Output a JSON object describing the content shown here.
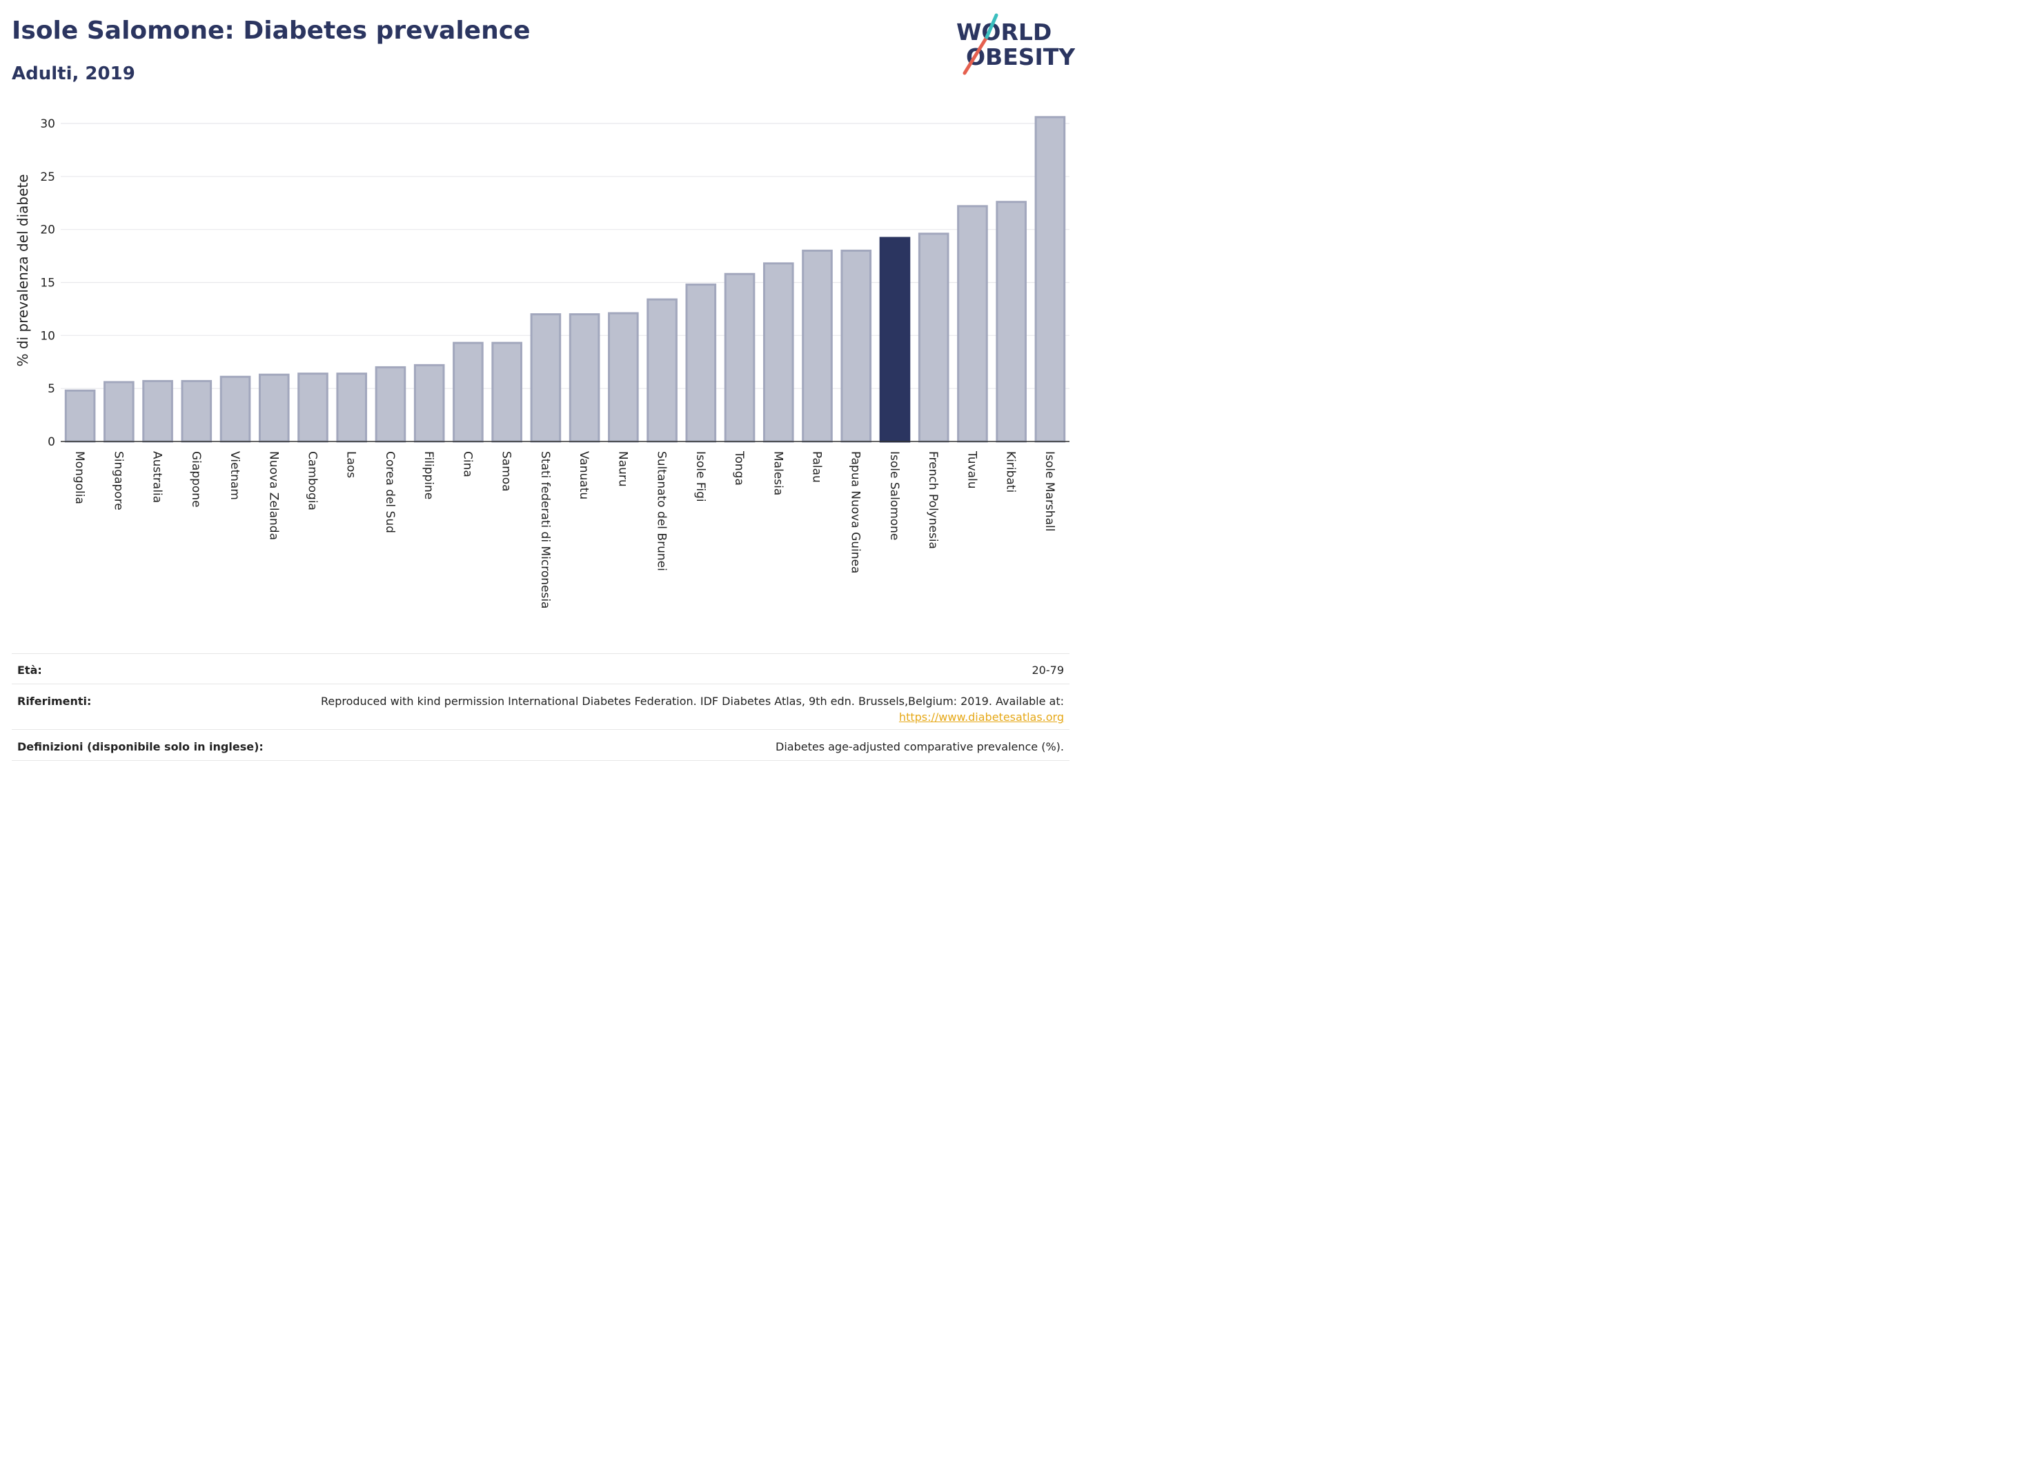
{
  "header": {
    "title": "Isole Salomone: Diabetes prevalence",
    "subtitle": "Adulti, 2019"
  },
  "logo": {
    "line1": "WORLD",
    "line2": "OBESITY",
    "colors": {
      "text": "#2b3560",
      "slash_red": "#e5604f",
      "slash_teal": "#3bbfbf"
    }
  },
  "chart_data": {
    "type": "bar",
    "ylabel": "% di prevalenza del diabete",
    "ylim": [
      0,
      31
    ],
    "yticks": [
      0,
      5,
      10,
      15,
      20,
      25,
      30
    ],
    "grid": true,
    "highlight": "Isole Salomone",
    "colors": {
      "bar": "#bcc0cf",
      "bar_edge": "#a2a7bd",
      "highlight": "#2b3560"
    },
    "categories": [
      "Mongolia",
      "Singapore",
      "Australia",
      "Giappone",
      "Vietnam",
      "Nuova Zelanda",
      "Cambogia",
      "Laos",
      "Corea del Sud",
      "Filippine",
      "Cina",
      "Samoa",
      "Stati federati di Micronesia",
      "Vanuatu",
      "Nauru",
      "Sultanato del Brunei",
      "Isole Figi",
      "Tonga",
      "Malesia",
      "Palau",
      "Papua Nuova Guinea",
      "Isole Salomone",
      "French Polynesia",
      "Tuvalu",
      "Kiribati",
      "Isole Marshall"
    ],
    "values": [
      4.8,
      5.6,
      5.7,
      5.7,
      6.1,
      6.3,
      6.4,
      6.4,
      7.0,
      7.2,
      9.3,
      9.3,
      12.0,
      12.0,
      12.1,
      13.4,
      14.8,
      15.8,
      16.8,
      18.0,
      18.0,
      19.2,
      19.6,
      22.2,
      22.6,
      30.6
    ]
  },
  "meta": {
    "age_label": "Età:",
    "age_value": "20-79",
    "ref_label": "Riferimenti:",
    "ref_text": "Reproduced with kind permission International Diabetes Federation. IDF Diabetes Atlas, 9th edn. Brussels,Belgium: 2019. Available at:",
    "ref_link": "https://www.diabetesatlas.org",
    "def_label": "Definizioni (disponibile solo in inglese):",
    "def_value": "Diabetes age-adjusted comparative prevalence (%)."
  }
}
